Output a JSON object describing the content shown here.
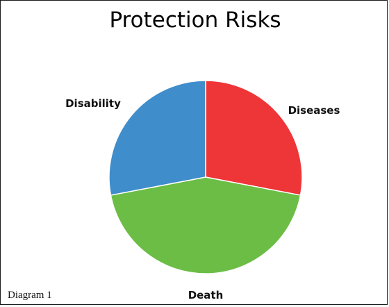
{
  "chart_data": {
    "type": "pie",
    "title": "Protection Risks",
    "slices": [
      {
        "label": "Diseases",
        "value": 28,
        "color": "#ee3538"
      },
      {
        "label": "Death",
        "value": 44,
        "color": "#6bbd45"
      },
      {
        "label": "Disability",
        "value": 28,
        "color": "#3f8dcb"
      }
    ]
  },
  "caption": "Diagram 1"
}
